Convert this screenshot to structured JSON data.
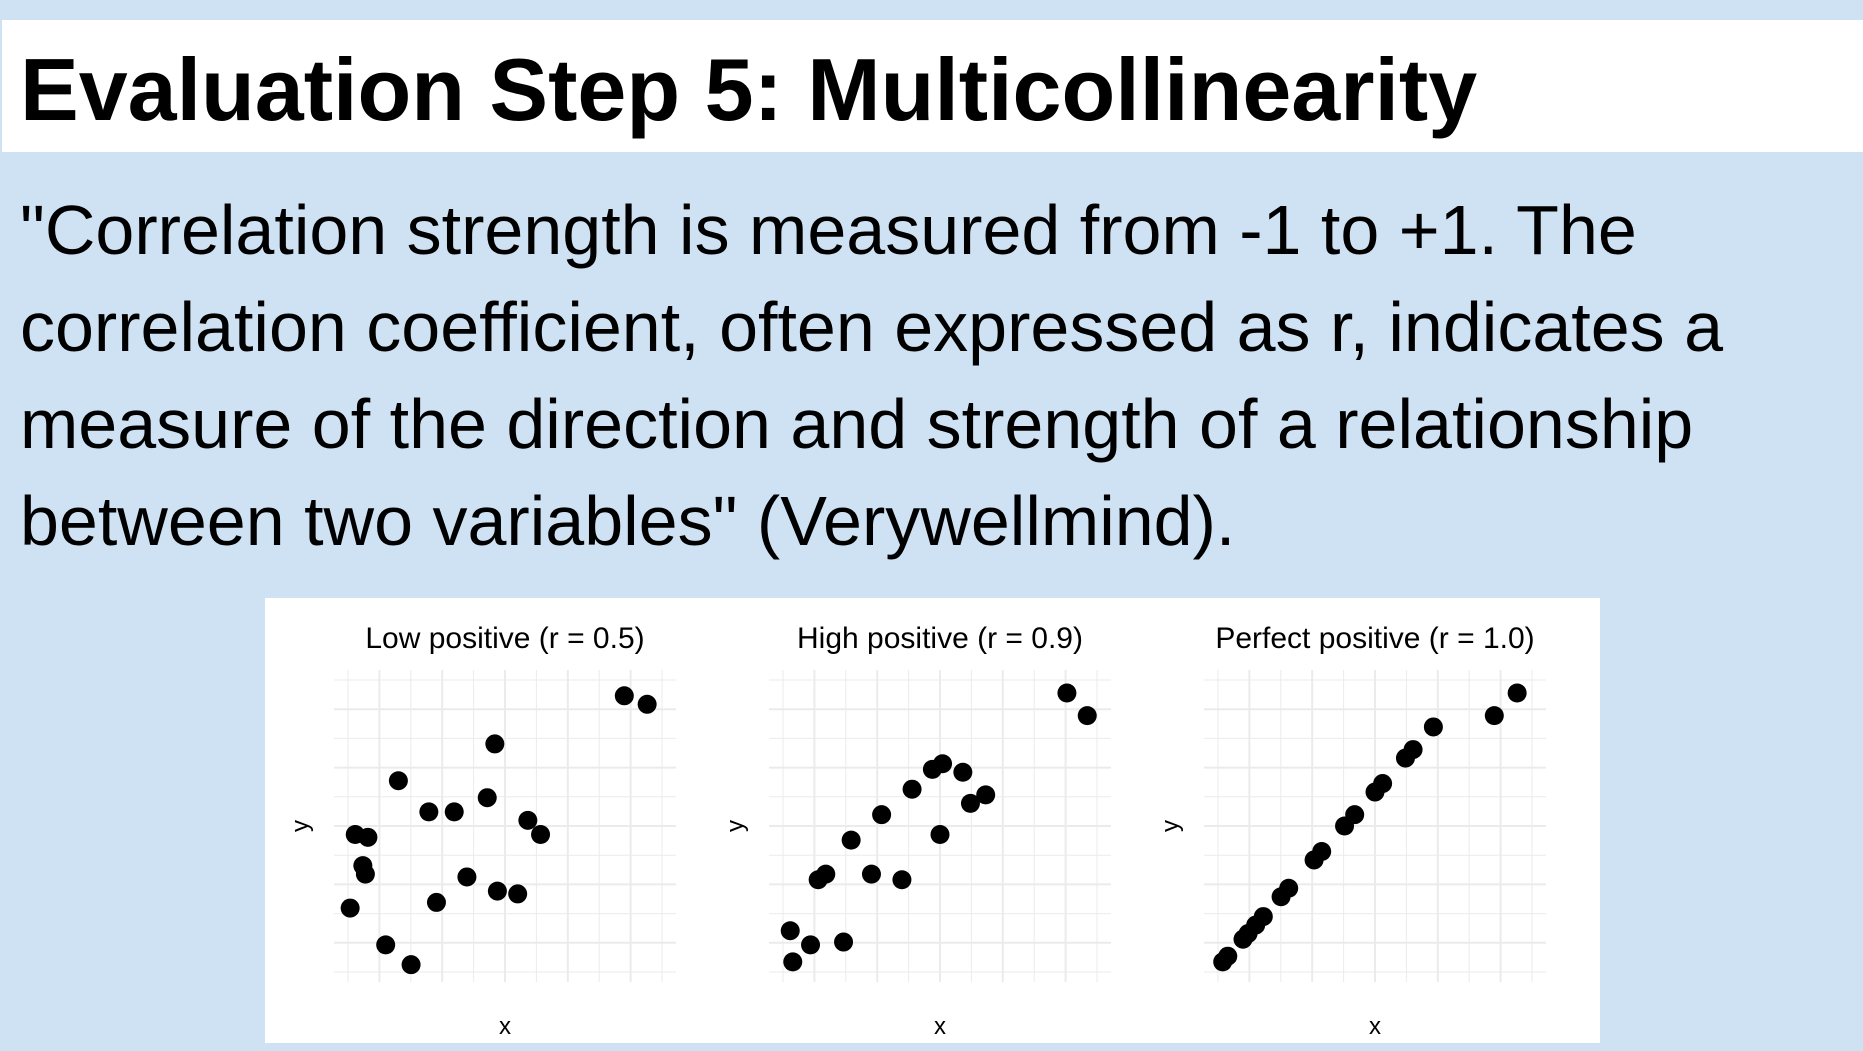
{
  "slide": {
    "title": "Evaluation Step 5: Multicollinearity",
    "quote": "\"Correlation strength is measured from -1 to +1. The correlation coefficient, often expressed as r, indicates a measure of the direction and strength of a relationship between two variables\" (Verywellmind)."
  },
  "colors": {
    "background": "#cfe2f3",
    "title_bar": "#ffffff",
    "point": "#000000",
    "grid": "#ebebeb"
  },
  "chart_data": [
    {
      "type": "scatter",
      "title": "Low positive (r = 0.5)",
      "xlabel": "x",
      "ylabel": "y",
      "grid": true,
      "xlim": [
        0,
        13
      ],
      "ylim": [
        0,
        10.6
      ],
      "points": [
        [
          0.4,
          2.4
        ],
        [
          0.6,
          5.0
        ],
        [
          1.1,
          4.9
        ],
        [
          0.9,
          3.9
        ],
        [
          1.0,
          3.6
        ],
        [
          1.8,
          1.1
        ],
        [
          2.3,
          6.9
        ],
        [
          2.8,
          0.4
        ],
        [
          3.5,
          5.8
        ],
        [
          3.8,
          2.6
        ],
        [
          4.5,
          5.8
        ],
        [
          5.0,
          3.5
        ],
        [
          5.8,
          6.3
        ],
        [
          6.2,
          3.0
        ],
        [
          6.1,
          8.2
        ],
        [
          7.0,
          2.9
        ],
        [
          7.4,
          5.5
        ],
        [
          7.9,
          5.0
        ],
        [
          11.2,
          9.9
        ],
        [
          12.1,
          9.6
        ]
      ]
    },
    {
      "type": "scatter",
      "title": "High positive (r = 0.9)",
      "xlabel": "x",
      "ylabel": "y",
      "grid": true,
      "xlim": [
        0,
        13
      ],
      "ylim": [
        0,
        10.6
      ],
      "points": [
        [
          0.6,
          1.6
        ],
        [
          0.7,
          0.5
        ],
        [
          1.4,
          1.1
        ],
        [
          1.7,
          3.4
        ],
        [
          2.0,
          3.6
        ],
        [
          2.7,
          1.2
        ],
        [
          3.0,
          4.8
        ],
        [
          3.8,
          3.6
        ],
        [
          4.2,
          5.7
        ],
        [
          5.0,
          3.4
        ],
        [
          5.4,
          6.6
        ],
        [
          6.2,
          7.3
        ],
        [
          6.6,
          7.5
        ],
        [
          6.5,
          5.0
        ],
        [
          7.4,
          7.2
        ],
        [
          7.7,
          6.1
        ],
        [
          8.3,
          6.4
        ],
        [
          11.5,
          10.0
        ],
        [
          12.3,
          9.2
        ]
      ]
    },
    {
      "type": "scatter",
      "title": "Perfect positive (r = 1.0)",
      "xlabel": "x",
      "ylabel": "y",
      "grid": true,
      "xlim": [
        0,
        13
      ],
      "ylim": [
        0,
        10.6
      ],
      "points": [
        [
          0.5,
          0.5
        ],
        [
          0.7,
          0.7
        ],
        [
          1.3,
          1.3
        ],
        [
          1.5,
          1.5
        ],
        [
          1.8,
          1.8
        ],
        [
          2.1,
          2.1
        ],
        [
          2.8,
          2.8
        ],
        [
          3.1,
          3.1
        ],
        [
          4.1,
          4.1
        ],
        [
          4.4,
          4.4
        ],
        [
          5.3,
          5.3
        ],
        [
          5.7,
          5.7
        ],
        [
          6.5,
          6.5
        ],
        [
          6.8,
          6.8
        ],
        [
          7.7,
          7.7
        ],
        [
          8.0,
          8.0
        ],
        [
          8.8,
          8.8
        ],
        [
          11.2,
          9.2
        ],
        [
          12.1,
          10.0
        ]
      ]
    }
  ]
}
